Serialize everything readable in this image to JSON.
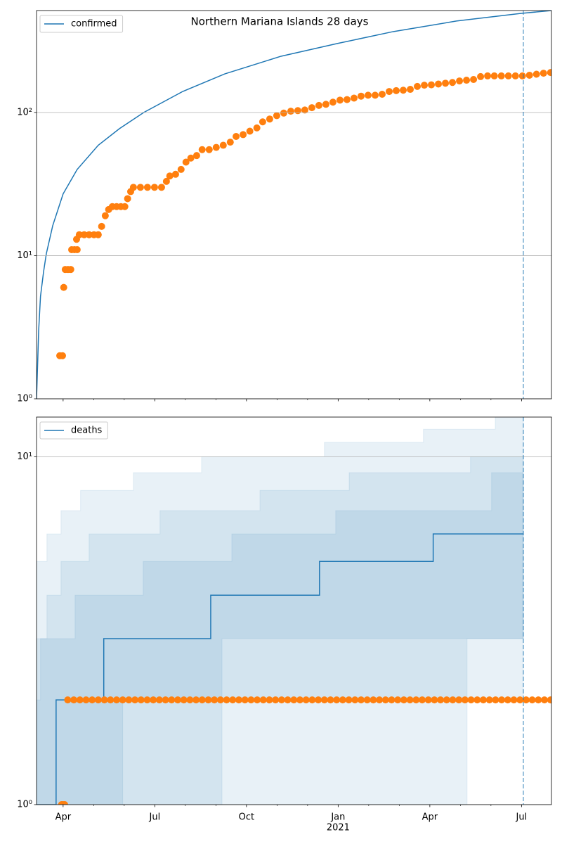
{
  "chart_data": [
    {
      "type": "line",
      "title": "Northern Mariana Islands 28 days",
      "yscale": "log",
      "grid": true,
      "legend": "upper left",
      "xlim": [
        2.13,
        18.98
      ],
      "ylim": [
        1,
        515
      ],
      "xticks": [
        3,
        6,
        9,
        12,
        15,
        18
      ],
      "xminorticks": [
        4,
        5,
        7,
        8,
        10,
        11,
        13,
        14,
        16,
        17
      ],
      "yticks": [
        {
          "value": 1,
          "label": "10⁰"
        },
        {
          "value": 10,
          "label": "10¹"
        },
        {
          "value": 100,
          "label": "10²"
        }
      ],
      "vline": {
        "x": 18.06,
        "color": "#1f77b4"
      },
      "series": [
        {
          "name": "confirmed",
          "kind": "line",
          "color": "#1f77b4",
          "x": [
            2.13,
            2.2,
            2.26,
            2.36,
            2.45,
            2.66,
            3.0,
            3.46,
            4.15,
            4.84,
            5.64,
            6.91,
            8.29,
            10.13,
            11.97,
            13.8,
            15.87,
            17.99,
            18.98
          ],
          "values": [
            1,
            3,
            5.2,
            7.7,
            10.3,
            16.2,
            27,
            40,
            59,
            77,
            100,
            140,
            186,
            247,
            303,
            367,
            435,
            492,
            515
          ]
        },
        {
          "kind": "scatter",
          "color": "#ff7f0e",
          "x": [
            2.89,
            2.98,
            3.02,
            3.07,
            3.16,
            3.25,
            3.28,
            3.37,
            3.46,
            3.44,
            3.53,
            3.69,
            3.85,
            4.01,
            4.15,
            4.26,
            4.38,
            4.49,
            4.61,
            4.75,
            4.89,
            5.02,
            5.11,
            5.21,
            5.3,
            5.53,
            5.76,
            5.99,
            6.22,
            6.38,
            6.49,
            6.68,
            6.86,
            7.02,
            7.18,
            7.37,
            7.55,
            7.78,
            8.01,
            8.24,
            8.47,
            8.66,
            8.89,
            9.11,
            9.34,
            9.53,
            9.76,
            9.99,
            10.22,
            10.45,
            10.68,
            10.91,
            11.14,
            11.37,
            11.6,
            11.83,
            12.06,
            12.29,
            12.52,
            12.75,
            12.98,
            13.21,
            13.44,
            13.67,
            13.9,
            14.13,
            14.36,
            14.59,
            14.82,
            15.05,
            15.28,
            15.51,
            15.74,
            15.97,
            16.2,
            16.43,
            16.66,
            16.89,
            17.11,
            17.34,
            17.57,
            17.8,
            18.03,
            18.26,
            18.49,
            18.72,
            18.95
          ],
          "values": [
            2,
            2,
            6,
            8,
            8,
            8,
            11,
            11,
            11,
            13,
            14,
            14,
            14,
            14,
            14,
            16,
            19,
            21,
            22,
            22,
            22,
            22,
            25,
            28,
            30,
            30,
            30,
            30,
            30,
            33,
            36,
            37,
            40,
            45,
            48,
            50,
            55,
            55,
            57,
            59,
            62,
            68,
            70,
            74,
            78,
            86,
            90,
            95,
            99,
            102,
            103,
            104,
            108,
            112,
            114,
            118,
            122,
            123,
            126,
            130,
            132,
            132,
            134,
            140,
            142,
            143,
            145,
            152,
            155,
            156,
            158,
            160,
            162,
            166,
            168,
            170,
            178,
            180,
            180,
            180,
            180,
            180,
            180,
            182,
            185,
            188,
            190
          ]
        }
      ]
    },
    {
      "type": "line",
      "yscale": "log",
      "grid": true,
      "legend": "upper left",
      "xlim": [
        2.13,
        18.98
      ],
      "ylim": [
        1,
        13
      ],
      "xticks": [
        {
          "value": 3,
          "label": "Apr"
        },
        {
          "value": 6,
          "label": "Jul"
        },
        {
          "value": 9,
          "label": "Oct"
        },
        {
          "value": 12,
          "label": "Jan"
        },
        {
          "value": 15,
          "label": "Apr"
        },
        {
          "value": 18,
          "label": "Jul"
        }
      ],
      "xtick_sublabels": [
        {
          "value": 12,
          "label": "2021"
        }
      ],
      "xminorticks": [
        4,
        5,
        7,
        8,
        10,
        11,
        13,
        14,
        16,
        17
      ],
      "yticks": [
        {
          "value": 1,
          "label": "10⁰"
        },
        {
          "value": 10,
          "label": "10¹"
        }
      ],
      "vline": {
        "x": 18.06,
        "color": "#1f77b4"
      },
      "band_color": "#1f77b4",
      "bands": [
        {
          "x": [
            2.13,
            2.47,
            2.93,
            3.57,
            5.3,
            7.53,
            11.55,
            14.79,
            16.22,
            17.14,
            18.06
          ],
          "lower": [
            1,
            1,
            1,
            1,
            1,
            1,
            1,
            1,
            3,
            3,
            3
          ],
          "upper": [
            5,
            6,
            7,
            8,
            9,
            10,
            11,
            12,
            12,
            14,
            14
          ]
        },
        {
          "x": [
            2.13,
            2.26,
            2.47,
            2.93,
            3.85,
            6.17,
            8.2,
            9.44,
            12.36,
            16.33,
            18.06
          ],
          "lower": [
            1,
            1,
            1,
            1,
            1,
            1,
            3,
            3,
            3,
            3,
            3
          ],
          "upper": [
            3,
            3,
            4,
            5,
            6,
            7,
            7,
            8,
            9,
            10,
            10
          ]
        },
        {
          "x": [
            2.13,
            2.26,
            2.7,
            3.39,
            4.95,
            5.62,
            8.52,
            11.92,
            17.02,
            18.06
          ],
          "lower": [
            1,
            1,
            1,
            1,
            2,
            2,
            2,
            2,
            2,
            2
          ],
          "upper": [
            2,
            3,
            3,
            4,
            4,
            5,
            6,
            7,
            9,
            9
          ]
        }
      ],
      "series": [
        {
          "name": "deaths",
          "kind": "line",
          "color": "#1f77b4",
          "x": [
            2.13,
            2.77,
            2.77,
            4.33,
            4.33,
            7.83,
            7.83,
            11.39,
            11.39,
            15.11,
            15.11,
            18.06
          ],
          "values": [
            1,
            1,
            2,
            2,
            3,
            3,
            4,
            4,
            5,
            5,
            6,
            6
          ]
        },
        {
          "kind": "scatter",
          "color": "#ff7f0e",
          "x": [
            2.95,
            3.0,
            3.05,
            3.15,
            3.35,
            3.55,
            3.75,
            3.95,
            4.15,
            4.35,
            4.55,
            4.75,
            4.95,
            5.15,
            5.35,
            5.55,
            5.75,
            5.95,
            6.15,
            6.35,
            6.55,
            6.75,
            6.95,
            7.15,
            7.35,
            7.55,
            7.75,
            7.95,
            8.15,
            8.35,
            8.55,
            8.75,
            8.95,
            9.15,
            9.35,
            9.55,
            9.75,
            9.95,
            10.15,
            10.35,
            10.55,
            10.75,
            10.95,
            11.15,
            11.35,
            11.55,
            11.75,
            11.95,
            12.15,
            12.35,
            12.55,
            12.75,
            12.95,
            13.15,
            13.35,
            13.55,
            13.75,
            13.95,
            14.15,
            14.35,
            14.55,
            14.75,
            14.95,
            15.15,
            15.35,
            15.55,
            15.75,
            15.95,
            16.15,
            16.35,
            16.55,
            16.75,
            16.95,
            17.15,
            17.35,
            17.55,
            17.75,
            17.95,
            18.15,
            18.35,
            18.55,
            18.75,
            18.95
          ],
          "values": [
            1,
            1,
            1,
            2,
            2,
            2,
            2,
            2,
            2,
            2,
            2,
            2,
            2,
            2,
            2,
            2,
            2,
            2,
            2,
            2,
            2,
            2,
            2,
            2,
            2,
            2,
            2,
            2,
            2,
            2,
            2,
            2,
            2,
            2,
            2,
            2,
            2,
            2,
            2,
            2,
            2,
            2,
            2,
            2,
            2,
            2,
            2,
            2,
            2,
            2,
            2,
            2,
            2,
            2,
            2,
            2,
            2,
            2,
            2,
            2,
            2,
            2,
            2,
            2,
            2,
            2,
            2,
            2,
            2,
            2,
            2,
            2,
            2,
            2,
            2,
            2,
            2,
            2,
            2,
            2,
            2,
            2,
            2
          ]
        }
      ]
    }
  ]
}
